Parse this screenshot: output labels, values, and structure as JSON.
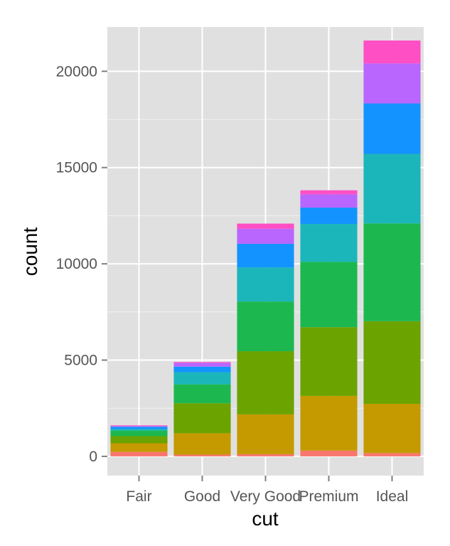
{
  "chart_data": {
    "type": "bar",
    "stacked": true,
    "xlabel": "cut",
    "ylabel": "count",
    "categories": [
      "Fair",
      "Good",
      "Very Good",
      "Premium",
      "Ideal"
    ],
    "ylim": [
      -1000,
      22300
    ],
    "yticks": [
      0,
      5000,
      10000,
      15000,
      20000
    ],
    "yticks_labels": [
      "0",
      "5000",
      "10000",
      "15000",
      "20000"
    ],
    "grid": true,
    "legend": "none",
    "series": [
      {
        "color": "#F8766D",
        "values": [
          230,
          90,
          110,
          300,
          170
        ]
      },
      {
        "color": "#C49A00",
        "values": [
          450,
          1110,
          2070,
          2840,
          2560
        ]
      },
      {
        "color": "#6BA300",
        "values": [
          370,
          1560,
          3280,
          3570,
          4290
        ]
      },
      {
        "color": "#1CB84F",
        "values": [
          290,
          980,
          2580,
          3390,
          5080
        ]
      },
      {
        "color": "#1BB6BA",
        "values": [
          80,
          630,
          1770,
          1970,
          3610
        ]
      },
      {
        "color": "#1393FF",
        "values": [
          120,
          290,
          1230,
          850,
          2620
        ]
      },
      {
        "color": "#B966FF",
        "values": [
          30,
          200,
          780,
          690,
          2080
        ]
      },
      {
        "color": "#FF4FC5",
        "values": [
          40,
          40,
          270,
          210,
          1190
        ]
      }
    ]
  }
}
